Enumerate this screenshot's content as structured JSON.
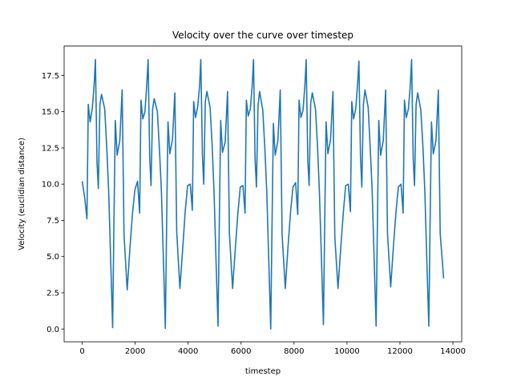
{
  "chart_data": {
    "type": "line",
    "title": "Velocity over the curve over timestep",
    "xlabel": "timestep",
    "ylabel": "Velocity (euclidian distance)",
    "xlim": [
      -682,
      14332
    ],
    "ylim": [
      -0.88,
      19.53
    ],
    "xticks": [
      0,
      2000,
      4000,
      6000,
      8000,
      10000,
      12000,
      14000
    ],
    "yticks": [
      {
        "value": 0,
        "label": "0.0"
      },
      2.5,
      {
        "value": 5,
        "label": "5.0"
      },
      7.5,
      {
        "value": 10,
        "label": "10.0"
      },
      12.5,
      {
        "value": 15,
        "label": "15.0"
      },
      17.5
    ],
    "grid": false,
    "series": [
      {
        "color": "#1f77b4",
        "x": [
          0,
          100,
          180,
          230,
          300,
          380,
          450,
          500,
          560,
          610,
          670,
          730,
          850,
          930,
          1000,
          1080,
          1150,
          1200,
          1250,
          1320,
          1420,
          1510,
          1580,
          1700,
          1800,
          1900,
          1990,
          2090,
          2170,
          2220,
          2290,
          2370,
          2440,
          2490,
          2550,
          2600,
          2660,
          2720,
          2840,
          2920,
          2990,
          3070,
          3140,
          3190,
          3240,
          3310,
          3410,
          3500,
          3570,
          3690,
          3790,
          3890,
          3980,
          4080,
          4160,
          4210,
          4280,
          4360,
          4430,
          4480,
          4540,
          4590,
          4650,
          4710,
          4830,
          4910,
          4980,
          5060,
          5130,
          5180,
          5230,
          5300,
          5400,
          5490,
          5560,
          5680,
          5780,
          5880,
          5970,
          6070,
          6150,
          6200,
          6270,
          6350,
          6420,
          6470,
          6530,
          6580,
          6640,
          6700,
          6820,
          6900,
          6970,
          7050,
          7120,
          7170,
          7220,
          7290,
          7390,
          7480,
          7550,
          7670,
          7770,
          7870,
          7960,
          8060,
          8140,
          8190,
          8260,
          8340,
          8410,
          8460,
          8520,
          8570,
          8630,
          8690,
          8810,
          8890,
          8960,
          9040,
          9110,
          9160,
          9210,
          9280,
          9380,
          9470,
          9540,
          9660,
          9760,
          9860,
          9950,
          10050,
          10130,
          10180,
          10250,
          10330,
          10400,
          10450,
          10510,
          10560,
          10620,
          10680,
          10800,
          10880,
          10950,
          11030,
          11100,
          11150,
          11200,
          11270,
          11370,
          11460,
          11530,
          11650,
          11750,
          11850,
          11940,
          12040,
          12120,
          12170,
          12240,
          12320,
          12390,
          12440,
          12500,
          12550,
          12610,
          12670,
          12790,
          12870,
          12940,
          13020,
          13090,
          13140,
          13190,
          13260,
          13360,
          13450,
          13520,
          13650
        ],
        "values": [
          10.2,
          9.0,
          7.6,
          15.5,
          14.3,
          15.2,
          16.8,
          18.6,
          11.5,
          9.7,
          15.5,
          16.2,
          15.2,
          12.5,
          9.5,
          4.5,
          0.1,
          7.5,
          14.4,
          12.0,
          13.0,
          16.5,
          6.5,
          2.7,
          5.5,
          8.0,
          9.6,
          10.2,
          8.0,
          15.8,
          14.5,
          15.0,
          16.9,
          18.6,
          11.8,
          9.9,
          15.2,
          15.9,
          15.0,
          12.3,
          9.6,
          4.6,
          0.05,
          7.4,
          14.3,
          12.1,
          13.1,
          16.3,
          6.7,
          2.8,
          5.4,
          8.1,
          9.9,
          10.0,
          8.2,
          15.7,
          14.6,
          15.3,
          16.7,
          18.6,
          12.0,
          10.0,
          15.7,
          16.4,
          15.3,
          12.6,
          9.4,
          4.4,
          0.2,
          7.6,
          14.4,
          12.2,
          12.9,
          16.4,
          6.6,
          2.8,
          5.5,
          8.0,
          9.8,
          9.9,
          8.0,
          15.8,
          14.7,
          15.2,
          16.8,
          18.6,
          11.7,
          9.8,
          15.4,
          16.4,
          15.1,
          12.4,
          9.5,
          4.5,
          0.0,
          7.3,
          14.2,
          12.0,
          13.0,
          16.5,
          6.5,
          2.8,
          5.6,
          8.1,
          9.8,
          10.1,
          7.9,
          15.8,
          14.6,
          15.1,
          16.8,
          18.6,
          11.6,
          9.9,
          15.6,
          16.3,
          15.2,
          12.5,
          9.4,
          4.6,
          0.3,
          7.5,
          14.3,
          12.1,
          13.1,
          16.4,
          6.4,
          2.8,
          5.5,
          8.0,
          9.9,
          10.0,
          8.1,
          15.7,
          14.5,
          15.2,
          16.9,
          18.5,
          11.9,
          9.8,
          15.5,
          16.5,
          15.3,
          12.4,
          9.6,
          4.5,
          0.2,
          7.4,
          14.4,
          12.0,
          13.0,
          16.5,
          6.6,
          2.9,
          5.6,
          8.1,
          9.8,
          10.0,
          8.0,
          15.8,
          14.6,
          15.2,
          16.8,
          18.6,
          11.8,
          9.9,
          15.5,
          16.3,
          15.1,
          12.5,
          9.5,
          4.4,
          0.2,
          7.6,
          14.3,
          12.1,
          13.0,
          16.5,
          6.6,
          3.5
        ]
      }
    ]
  }
}
